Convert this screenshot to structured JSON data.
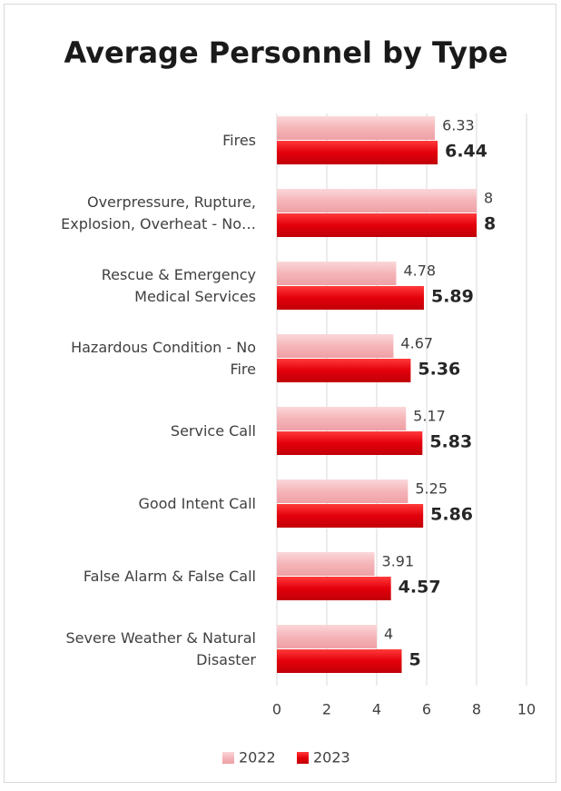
{
  "chart_data": {
    "type": "bar",
    "orientation": "horizontal",
    "title": "Average Personnel by Type",
    "categories": [
      [
        "Fires"
      ],
      [
        "Overpressure, Rupture,",
        "Explosion, Overheat - No…"
      ],
      [
        "Rescue & Emergency",
        "Medical Services"
      ],
      [
        "Hazardous Condition - No",
        "Fire"
      ],
      [
        "Service Call"
      ],
      [
        "Good Intent Call"
      ],
      [
        "False Alarm & False Call"
      ],
      [
        "Severe Weather & Natural",
        "Disaster"
      ]
    ],
    "series": [
      {
        "name": "2022",
        "color": "#f5b5b9",
        "values": [
          6.33,
          8,
          4.78,
          4.67,
          5.17,
          5.25,
          3.91,
          4
        ]
      },
      {
        "name": "2023",
        "color": "#e3000b",
        "values": [
          6.44,
          8,
          5.89,
          5.36,
          5.83,
          5.86,
          4.57,
          5
        ]
      }
    ],
    "xlim": [
      0,
      10
    ],
    "xticks": [
      0,
      2,
      4,
      6,
      8,
      10
    ],
    "grid": true,
    "legend": "bottom"
  }
}
